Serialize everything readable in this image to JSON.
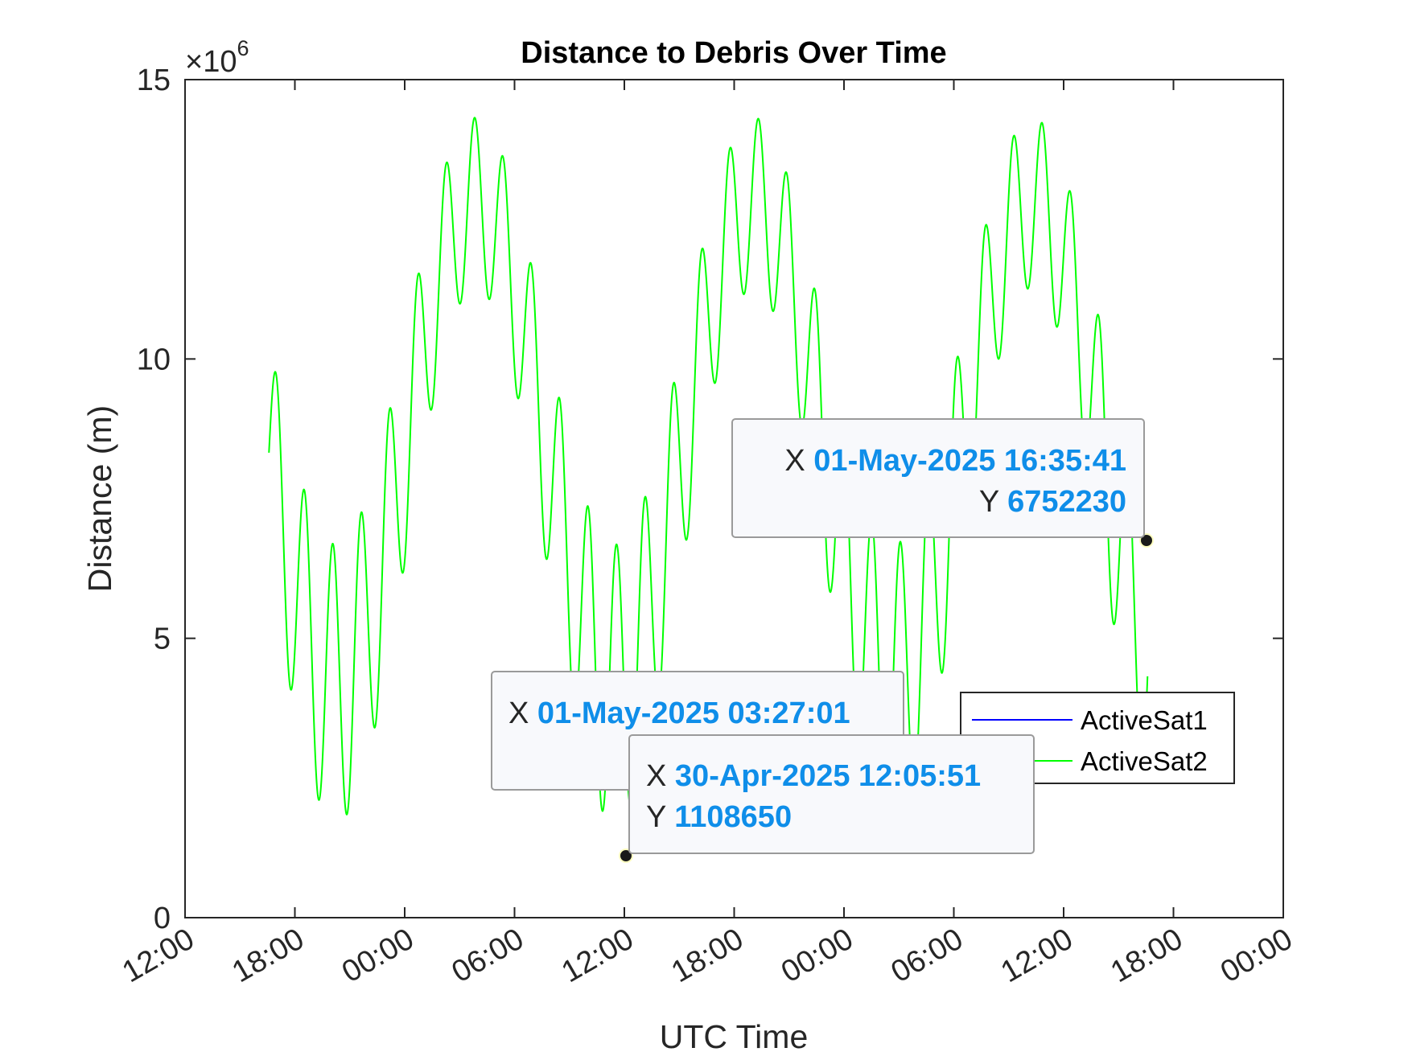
{
  "chart_data": {
    "type": "line",
    "title": "Distance to Debris Over Time",
    "xlabel": "UTC Time",
    "ylabel": "Distance (m)",
    "y_exponent_label": "×10",
    "y_exponent_power": "6",
    "ylim": [
      0,
      15000000
    ],
    "y_ticks": [
      0,
      5000000,
      10000000,
      15000000
    ],
    "y_tick_labels": [
      "0",
      "5",
      "10",
      "15"
    ],
    "xlim": [
      "29-Apr-2025 12:00",
      "02-May-2025 00:00"
    ],
    "x_ticks": [
      "29-Apr-2025 12:00",
      "29-Apr-2025 18:00",
      "30-Apr-2025 00:00",
      "30-Apr-2025 06:00",
      "30-Apr-2025 12:00",
      "30-Apr-2025 18:00",
      "01-May-2025 00:00",
      "01-May-2025 06:00",
      "01-May-2025 12:00",
      "01-May-2025 18:00",
      "02-May-2025 00:00"
    ],
    "x_tick_labels": [
      "12:00",
      "18:00",
      "00:00",
      "06:00",
      "12:00",
      "18:00",
      "00:00",
      "06:00",
      "12:00",
      "18:00",
      "00:00"
    ],
    "grid": false,
    "legend_position": "lower-right",
    "series": [
      {
        "name": "ActiveSat1",
        "color": "#0000ff",
        "x_range": [
          "29-Apr-2025 12:00",
          "02-May-2025 00:00"
        ],
        "values_constant": 0
      },
      {
        "name": "ActiveSat2",
        "color": "#00ff00",
        "x_range": [
          "29-Apr-2025 16:35",
          "01-May-2025 16:35"
        ],
        "envelope": {
          "slow_period_hours": 15.2,
          "fast_period_hours": 1.55,
          "mean": 8500000,
          "slow_amplitude": 4300000,
          "fast_amplitude": 1600000,
          "max": 14100000,
          "min": 700000
        }
      },
      {
        "name": "",
        "color": "#ff0000",
        "x_range": [
          "29-Apr-2025 12:00",
          "02-May-2025 00:00"
        ],
        "values_constant": 0,
        "style": "dashed"
      }
    ],
    "datatips": [
      {
        "x_label": "X",
        "y_label": "Y",
        "x_value": "01-May-2025 16:35:41",
        "y_value": "6752230"
      },
      {
        "x_label": "X",
        "y_label": "",
        "x_value": "01-May-2025 03:27:01",
        "y_value": ""
      },
      {
        "x_label": "X",
        "y_label": "Y",
        "x_value": "30-Apr-2025 12:05:51",
        "y_value": "1108650"
      }
    ],
    "datatip_value_color": "#0f8ee9"
  }
}
